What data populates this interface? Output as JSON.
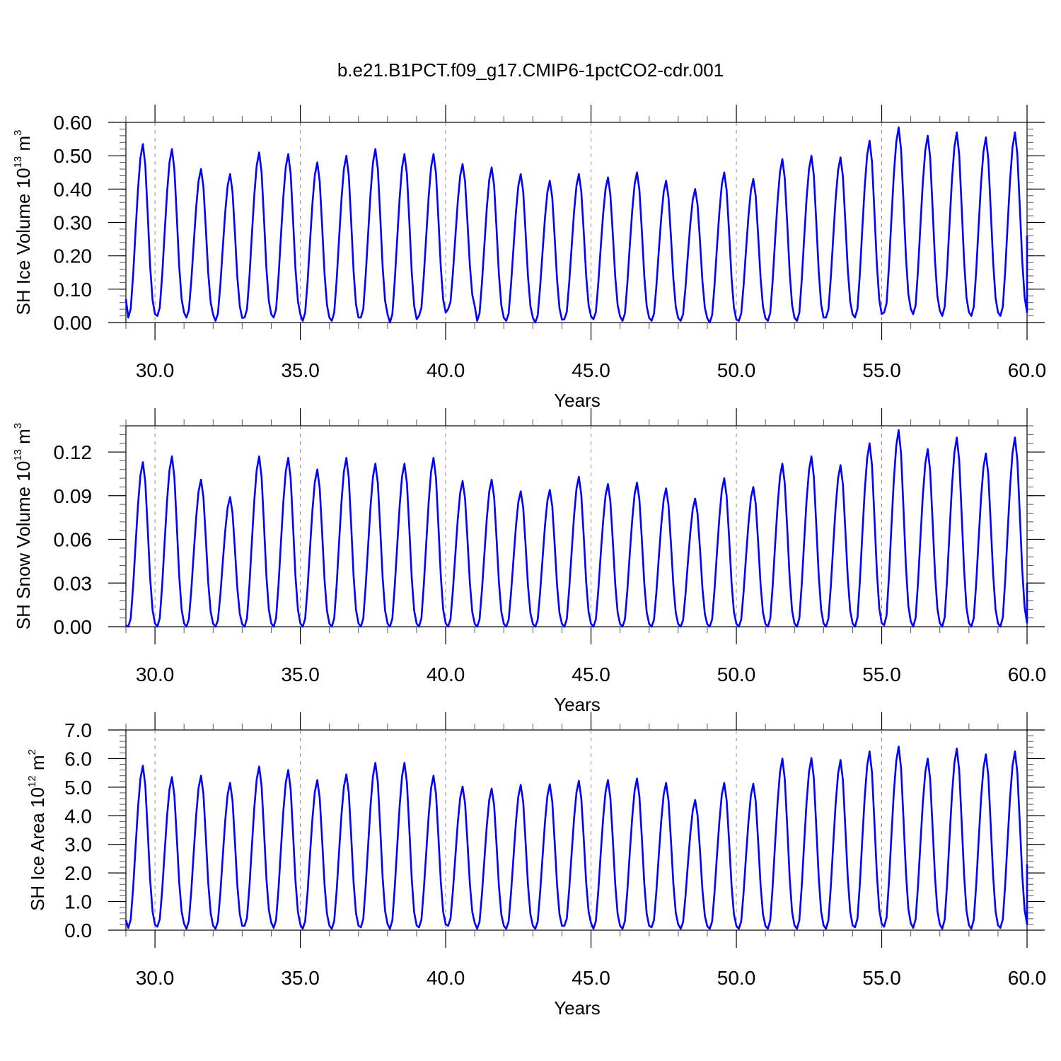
{
  "title": "b.e21.B1PCT.f09_g17.CMIP6-1pctCO2-cdr.001",
  "chart_data": [
    {
      "type": "line",
      "ylabel_text": "SH Ice Volume 10",
      "ylabel_exp": "13",
      "ylabel_unit": " m",
      "ylabel_unit_exp": "3",
      "xlabel": "Years",
      "xlim": [
        29.0,
        60.0
      ],
      "ylim": [
        0.0,
        0.6
      ],
      "xticks": [
        "30.0",
        "35.0",
        "40.0",
        "45.0",
        "50.0",
        "55.0",
        "60.0"
      ],
      "yticks": [
        "0.00",
        "0.10",
        "0.20",
        "0.30",
        "0.40",
        "0.50",
        "0.60"
      ],
      "start_value": 0.07,
      "end_value": 0.26,
      "series": [
        {
          "color": "#0000ff",
          "year_max": [
            0.535,
            0.52,
            0.46,
            0.445,
            0.51,
            0.505,
            0.48,
            0.5,
            0.52,
            0.505,
            0.505,
            0.475,
            0.465,
            0.445,
            0.425,
            0.445,
            0.435,
            0.45,
            0.425,
            0.4,
            0.45,
            0.43,
            0.49,
            0.5,
            0.495,
            0.545,
            0.585,
            0.56,
            0.57,
            0.555,
            0.57
          ],
          "year_min": [
            0.015,
            0.02,
            0.015,
            0.005,
            0.015,
            0.015,
            0.005,
            0.005,
            0.015,
            0.0,
            0.02,
            0.04,
            0.005,
            0.005,
            0.0,
            0.01,
            0.01,
            0.005,
            0.005,
            0.005,
            0.0,
            0.005,
            0.005,
            0.005,
            0.015,
            0.015,
            0.03,
            0.025,
            0.02,
            0.02,
            0.02
          ]
        }
      ]
    },
    {
      "type": "line",
      "ylabel_text": "SH Snow Volume 10",
      "ylabel_exp": "13",
      "ylabel_unit": " m",
      "ylabel_unit_exp": "3",
      "xlabel": "Years",
      "xlim": [
        29.0,
        60.0
      ],
      "ylim": [
        0.0,
        0.138
      ],
      "xticks": [
        "30.0",
        "35.0",
        "40.0",
        "45.0",
        "50.0",
        "55.0",
        "60.0"
      ],
      "yticks": [
        "0.00",
        "0.03",
        "0.06",
        "0.09",
        "0.12"
      ],
      "start_value": 0.001,
      "end_value": 0.03,
      "series": [
        {
          "color": "#0000ff",
          "year_max": [
            0.113,
            0.117,
            0.101,
            0.089,
            0.117,
            0.116,
            0.108,
            0.116,
            0.112,
            0.112,
            0.116,
            0.1,
            0.101,
            0.093,
            0.094,
            0.103,
            0.098,
            0.099,
            0.095,
            0.088,
            0.102,
            0.096,
            0.112,
            0.117,
            0.111,
            0.126,
            0.135,
            0.122,
            0.13,
            0.119,
            0.13
          ],
          "year_min": [
            0.0,
            0.0,
            0.0,
            0.0,
            0.0,
            0.0,
            0.0,
            0.0,
            0.0,
            0.0,
            0.0,
            0.0,
            0.0,
            0.0,
            0.0,
            0.0,
            0.0,
            0.0,
            0.0,
            0.0,
            0.0,
            0.0,
            0.0,
            0.0,
            0.0,
            0.0,
            0.001,
            0.0,
            0.0,
            0.0,
            0.0
          ]
        }
      ]
    },
    {
      "type": "line",
      "ylabel_text": "SH Ice Area 10",
      "ylabel_exp": "12",
      "ylabel_unit": " m",
      "ylabel_unit_exp": "2",
      "xlabel": "Years",
      "xlim": [
        29.0,
        60.0
      ],
      "ylim": [
        0.0,
        7.0
      ],
      "xticks": [
        "30.0",
        "35.0",
        "40.0",
        "45.0",
        "50.0",
        "55.0",
        "60.0"
      ],
      "yticks": [
        "0.0",
        "1.0",
        "2.0",
        "3.0",
        "4.0",
        "5.0",
        "6.0",
        "7.0"
      ],
      "start_value": 0.35,
      "end_value": 2.3,
      "series": [
        {
          "color": "#0000ff",
          "year_max": [
            5.75,
            5.35,
            5.4,
            5.15,
            5.72,
            5.6,
            5.25,
            5.45,
            5.85,
            5.85,
            5.4,
            5.02,
            4.95,
            5.08,
            5.1,
            5.22,
            5.25,
            5.3,
            5.15,
            4.55,
            5.15,
            5.12,
            6.0,
            6.02,
            5.95,
            6.25,
            6.42,
            6.0,
            6.35,
            6.15,
            6.25
          ],
          "year_min": [
            0.08,
            0.12,
            0.05,
            0.05,
            0.15,
            0.08,
            0.05,
            0.05,
            0.1,
            0.05,
            0.1,
            0.15,
            0.05,
            0.05,
            0.05,
            0.15,
            0.05,
            0.05,
            0.1,
            0.05,
            0.05,
            0.05,
            0.05,
            0.05,
            0.05,
            0.1,
            0.12,
            0.08,
            0.05,
            0.05,
            0.08
          ]
        }
      ]
    }
  ]
}
